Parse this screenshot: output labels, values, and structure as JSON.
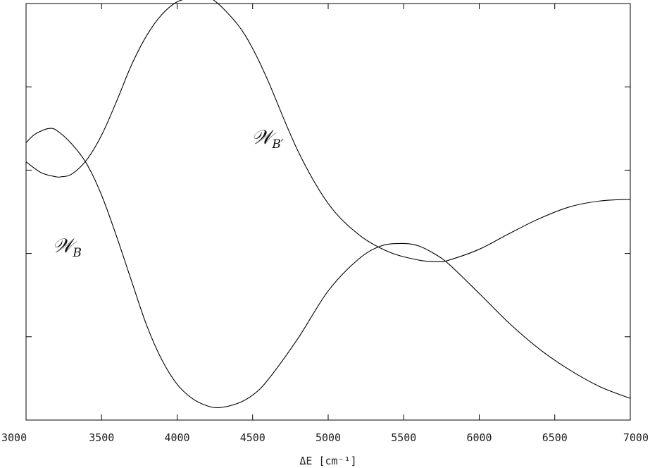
{
  "chart_data": {
    "type": "line",
    "title": "",
    "xlabel": "ΔE [cm⁻¹]",
    "ylabel": "",
    "xlim": [
      3000,
      7000
    ],
    "ylim": [
      0,
      5
    ],
    "x_ticks": [
      "3000",
      "3500",
      "4000",
      "4500",
      "5000",
      "5500",
      "6000",
      "6500",
      "7000"
    ],
    "y_ticks": [
      1,
      2,
      3,
      4
    ],
    "y_tick_labels_shown": false,
    "grid": false,
    "legend": "none",
    "series": [
      {
        "name": "𝒲_B",
        "label_main": "𝒲",
        "label_sub": "B",
        "x": [
          3000,
          3050,
          3100,
          3150,
          3200,
          3300,
          3400,
          3500,
          3600,
          3700,
          3800,
          3900,
          4000,
          4100,
          4200,
          4280,
          4400,
          4500,
          4600,
          4800,
          5000,
          5200,
          5350,
          5500,
          5600,
          5700,
          5800,
          6000,
          6200,
          6400,
          6600,
          6800,
          7000
        ],
        "y": [
          3.33,
          3.42,
          3.47,
          3.5,
          3.48,
          3.32,
          3.08,
          2.7,
          2.2,
          1.66,
          1.13,
          0.72,
          0.43,
          0.26,
          0.17,
          0.15,
          0.2,
          0.3,
          0.48,
          0.98,
          1.55,
          1.93,
          2.09,
          2.12,
          2.09,
          2.0,
          1.87,
          1.52,
          1.16,
          0.85,
          0.6,
          0.4,
          0.26
        ]
      },
      {
        "name": "𝒲_B′",
        "label_main": "𝒲",
        "label_sub": "B′",
        "x": [
          3000,
          3100,
          3200,
          3230,
          3300,
          3400,
          3500,
          3600,
          3700,
          3800,
          3900,
          4000,
          4100,
          4160,
          4250,
          4400,
          4500,
          4600,
          4800,
          5000,
          5200,
          5400,
          5600,
          5730,
          5800,
          6000,
          6200,
          6400,
          6600,
          6800,
          7000
        ],
        "y": [
          3.1,
          2.97,
          2.92,
          2.92,
          2.95,
          3.12,
          3.42,
          3.83,
          4.27,
          4.62,
          4.87,
          5.02,
          5.07,
          5.08,
          5.03,
          4.75,
          4.46,
          4.08,
          3.23,
          2.6,
          2.23,
          2.02,
          1.92,
          1.9,
          1.92,
          2.05,
          2.24,
          2.42,
          2.56,
          2.63,
          2.65
        ]
      }
    ]
  }
}
